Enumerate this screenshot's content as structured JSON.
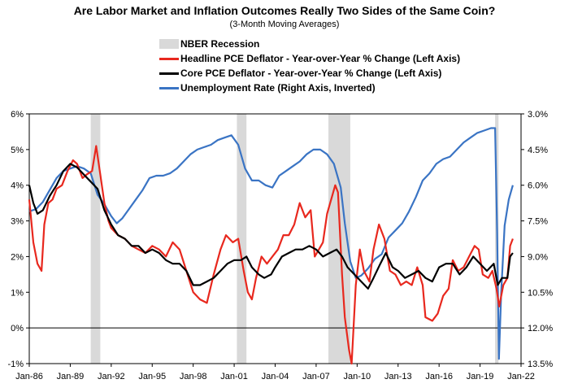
{
  "chart_data": {
    "type": "line",
    "title": "Are Labor Market and Inflation Outcomes Really Two Sides of the Same Coin?",
    "subtitle": "(3-Month Moving Averages)",
    "x_ticks": [
      "Jan-86",
      "Jan-89",
      "Jan-92",
      "Jan-95",
      "Jan-98",
      "Jan-01",
      "Jan-04",
      "Jan-07",
      "Jan-10",
      "Jan-13",
      "Jan-16",
      "Jan-19",
      "Jan-22"
    ],
    "x_range": [
      1986.0,
      2022.0
    ],
    "left_axis": {
      "ticks": [
        "-1%",
        "0%",
        "1%",
        "2%",
        "3%",
        "4%",
        "5%",
        "6%"
      ],
      "range": [
        -1,
        6
      ]
    },
    "right_axis": {
      "ticks": [
        "3.0%",
        "4.5%",
        "6.0%",
        "7.5%",
        "9.0%",
        "10.5%",
        "12.0%",
        "13.5%"
      ],
      "range": [
        3.0,
        13.5
      ],
      "inverted": true
    },
    "legend_placement": "top-center",
    "recessions": [
      {
        "name": "NBER Recession",
        "start": 1990.5,
        "end": 1991.2
      },
      {
        "name": "NBER Recession",
        "start": 2001.2,
        "end": 2001.9
      },
      {
        "name": "NBER Recession",
        "start": 2007.9,
        "end": 2009.5
      },
      {
        "name": "NBER Recession",
        "start": 2020.1,
        "end": 2020.35
      }
    ],
    "recession_label": "NBER Recession",
    "series": [
      {
        "name": "Headline PCE Deflator - Year-over-Year % Change (Left Axis)",
        "axis": "left",
        "color": "#e8281e",
        "points": [
          [
            1986.0,
            3.6
          ],
          [
            1986.3,
            2.4
          ],
          [
            1986.6,
            1.8
          ],
          [
            1986.9,
            1.6
          ],
          [
            1987.1,
            2.9
          ],
          [
            1987.4,
            3.5
          ],
          [
            1987.7,
            3.6
          ],
          [
            1988.0,
            3.9
          ],
          [
            1988.4,
            4.0
          ],
          [
            1988.8,
            4.4
          ],
          [
            1989.2,
            4.7
          ],
          [
            1989.5,
            4.6
          ],
          [
            1989.9,
            4.2
          ],
          [
            1990.2,
            4.3
          ],
          [
            1990.6,
            4.4
          ],
          [
            1990.9,
            5.1
          ],
          [
            1991.2,
            4.3
          ],
          [
            1991.5,
            3.5
          ],
          [
            1991.8,
            3.0
          ],
          [
            1992.0,
            2.8
          ],
          [
            1992.5,
            2.6
          ],
          [
            1993.0,
            2.5
          ],
          [
            1993.5,
            2.3
          ],
          [
            1994.0,
            2.2
          ],
          [
            1994.5,
            2.1
          ],
          [
            1995.0,
            2.3
          ],
          [
            1995.5,
            2.2
          ],
          [
            1996.0,
            2.0
          ],
          [
            1996.5,
            2.4
          ],
          [
            1997.0,
            2.2
          ],
          [
            1997.5,
            1.6
          ],
          [
            1998.0,
            1.0
          ],
          [
            1998.5,
            0.8
          ],
          [
            1999.0,
            0.7
          ],
          [
            1999.5,
            1.5
          ],
          [
            2000.0,
            2.2
          ],
          [
            2000.4,
            2.6
          ],
          [
            2000.9,
            2.4
          ],
          [
            2001.3,
            2.5
          ],
          [
            2001.7,
            1.6
          ],
          [
            2002.0,
            1.0
          ],
          [
            2002.3,
            0.8
          ],
          [
            2002.6,
            1.4
          ],
          [
            2003.0,
            2.0
          ],
          [
            2003.4,
            1.8
          ],
          [
            2003.8,
            2.0
          ],
          [
            2004.2,
            2.2
          ],
          [
            2004.6,
            2.6
          ],
          [
            2005.0,
            2.6
          ],
          [
            2005.4,
            2.9
          ],
          [
            2005.8,
            3.5
          ],
          [
            2006.2,
            3.1
          ],
          [
            2006.6,
            3.3
          ],
          [
            2006.9,
            2.0
          ],
          [
            2007.2,
            2.2
          ],
          [
            2007.5,
            2.4
          ],
          [
            2007.8,
            3.2
          ],
          [
            2008.1,
            3.6
          ],
          [
            2008.4,
            4.0
          ],
          [
            2008.6,
            3.8
          ],
          [
            2008.9,
            1.5
          ],
          [
            2009.1,
            0.3
          ],
          [
            2009.4,
            -0.6
          ],
          [
            2009.6,
            -1.0
          ],
          [
            2009.9,
            1.2
          ],
          [
            2010.2,
            2.2
          ],
          [
            2010.5,
            1.6
          ],
          [
            2010.9,
            1.3
          ],
          [
            2011.2,
            2.2
          ],
          [
            2011.6,
            2.9
          ],
          [
            2012.0,
            2.5
          ],
          [
            2012.4,
            1.6
          ],
          [
            2012.8,
            1.5
          ],
          [
            2013.2,
            1.2
          ],
          [
            2013.6,
            1.3
          ],
          [
            2014.0,
            1.2
          ],
          [
            2014.4,
            1.7
          ],
          [
            2014.8,
            1.2
          ],
          [
            2015.0,
            0.3
          ],
          [
            2015.5,
            0.2
          ],
          [
            2015.9,
            0.4
          ],
          [
            2016.3,
            0.9
          ],
          [
            2016.7,
            1.1
          ],
          [
            2017.0,
            1.9
          ],
          [
            2017.4,
            1.6
          ],
          [
            2017.8,
            1.7
          ],
          [
            2018.2,
            2.0
          ],
          [
            2018.6,
            2.3
          ],
          [
            2018.9,
            2.2
          ],
          [
            2019.2,
            1.5
          ],
          [
            2019.6,
            1.4
          ],
          [
            2019.9,
            1.6
          ],
          [
            2020.2,
            1.1
          ],
          [
            2020.4,
            0.6
          ],
          [
            2020.7,
            1.2
          ],
          [
            2021.0,
            1.4
          ],
          [
            2021.2,
            2.3
          ],
          [
            2021.4,
            2.5
          ]
        ]
      },
      {
        "name": "Core PCE Deflator - Year-over-Year % Change (Left Axis)",
        "axis": "left",
        "color": "#000000",
        "points": [
          [
            1986.0,
            4.0
          ],
          [
            1986.3,
            3.5
          ],
          [
            1986.6,
            3.2
          ],
          [
            1987.0,
            3.3
          ],
          [
            1987.5,
            3.7
          ],
          [
            1988.0,
            4.0
          ],
          [
            1988.5,
            4.4
          ],
          [
            1989.0,
            4.6
          ],
          [
            1989.5,
            4.5
          ],
          [
            1990.0,
            4.3
          ],
          [
            1990.5,
            4.1
          ],
          [
            1991.0,
            3.9
          ],
          [
            1991.5,
            3.3
          ],
          [
            1992.0,
            2.9
          ],
          [
            1992.5,
            2.6
          ],
          [
            1993.0,
            2.5
          ],
          [
            1993.5,
            2.3
          ],
          [
            1994.0,
            2.3
          ],
          [
            1994.5,
            2.1
          ],
          [
            1995.0,
            2.2
          ],
          [
            1995.5,
            2.1
          ],
          [
            1996.0,
            1.9
          ],
          [
            1996.5,
            1.8
          ],
          [
            1997.0,
            1.8
          ],
          [
            1997.5,
            1.6
          ],
          [
            1998.0,
            1.2
          ],
          [
            1998.5,
            1.2
          ],
          [
            1999.0,
            1.3
          ],
          [
            1999.5,
            1.4
          ],
          [
            2000.0,
            1.6
          ],
          [
            2000.5,
            1.8
          ],
          [
            2001.0,
            1.9
          ],
          [
            2001.5,
            1.9
          ],
          [
            2001.9,
            2.0
          ],
          [
            2002.3,
            1.7
          ],
          [
            2002.8,
            1.5
          ],
          [
            2003.2,
            1.4
          ],
          [
            2003.7,
            1.5
          ],
          [
            2004.0,
            1.7
          ],
          [
            2004.5,
            2.0
          ],
          [
            2005.0,
            2.1
          ],
          [
            2005.5,
            2.2
          ],
          [
            2006.0,
            2.2
          ],
          [
            2006.5,
            2.3
          ],
          [
            2007.0,
            2.2
          ],
          [
            2007.5,
            2.0
          ],
          [
            2008.0,
            2.1
          ],
          [
            2008.5,
            2.2
          ],
          [
            2008.9,
            2.0
          ],
          [
            2009.3,
            1.7
          ],
          [
            2009.8,
            1.5
          ],
          [
            2010.3,
            1.3
          ],
          [
            2010.8,
            1.1
          ],
          [
            2011.2,
            1.4
          ],
          [
            2011.7,
            1.8
          ],
          [
            2012.1,
            2.1
          ],
          [
            2012.6,
            1.7
          ],
          [
            2013.0,
            1.6
          ],
          [
            2013.5,
            1.4
          ],
          [
            2014.0,
            1.5
          ],
          [
            2014.5,
            1.6
          ],
          [
            2015.0,
            1.4
          ],
          [
            2015.5,
            1.3
          ],
          [
            2016.0,
            1.7
          ],
          [
            2016.5,
            1.8
          ],
          [
            2017.0,
            1.8
          ],
          [
            2017.5,
            1.5
          ],
          [
            2018.0,
            1.7
          ],
          [
            2018.5,
            2.0
          ],
          [
            2019.0,
            1.8
          ],
          [
            2019.5,
            1.6
          ],
          [
            2020.0,
            1.8
          ],
          [
            2020.3,
            1.2
          ],
          [
            2020.6,
            1.4
          ],
          [
            2021.0,
            1.4
          ],
          [
            2021.2,
            2.0
          ],
          [
            2021.4,
            2.1
          ]
        ]
      },
      {
        "name": "Unemployment Rate (Right Axis, Inverted)",
        "axis": "right",
        "color": "#3a74c4",
        "points": [
          [
            1986.0,
            7.1
          ],
          [
            1986.5,
            7.0
          ],
          [
            1987.0,
            6.7
          ],
          [
            1987.5,
            6.2
          ],
          [
            1988.0,
            5.7
          ],
          [
            1988.5,
            5.4
          ],
          [
            1989.0,
            5.3
          ],
          [
            1989.5,
            5.2
          ],
          [
            1990.0,
            5.3
          ],
          [
            1990.5,
            5.5
          ],
          [
            1991.0,
            6.4
          ],
          [
            1991.5,
            6.8
          ],
          [
            1992.0,
            7.3
          ],
          [
            1992.4,
            7.6
          ],
          [
            1992.8,
            7.4
          ],
          [
            1993.3,
            7.0
          ],
          [
            1993.8,
            6.6
          ],
          [
            1994.3,
            6.2
          ],
          [
            1994.8,
            5.7
          ],
          [
            1995.3,
            5.6
          ],
          [
            1995.8,
            5.6
          ],
          [
            1996.3,
            5.5
          ],
          [
            1996.8,
            5.3
          ],
          [
            1997.3,
            5.0
          ],
          [
            1997.8,
            4.7
          ],
          [
            1998.3,
            4.5
          ],
          [
            1998.8,
            4.4
          ],
          [
            1999.3,
            4.3
          ],
          [
            1999.8,
            4.1
          ],
          [
            2000.3,
            4.0
          ],
          [
            2000.8,
            3.9
          ],
          [
            2001.3,
            4.3
          ],
          [
            2001.8,
            5.3
          ],
          [
            2002.3,
            5.8
          ],
          [
            2002.8,
            5.8
          ],
          [
            2003.3,
            6.0
          ],
          [
            2003.8,
            6.1
          ],
          [
            2004.3,
            5.6
          ],
          [
            2004.8,
            5.4
          ],
          [
            2005.3,
            5.2
          ],
          [
            2005.8,
            5.0
          ],
          [
            2006.3,
            4.7
          ],
          [
            2006.8,
            4.5
          ],
          [
            2007.3,
            4.5
          ],
          [
            2007.8,
            4.7
          ],
          [
            2008.3,
            5.1
          ],
          [
            2008.8,
            6.1
          ],
          [
            2009.1,
            7.6
          ],
          [
            2009.5,
            9.2
          ],
          [
            2009.9,
            9.9
          ],
          [
            2010.3,
            9.8
          ],
          [
            2010.8,
            9.5
          ],
          [
            2011.3,
            9.1
          ],
          [
            2011.8,
            8.9
          ],
          [
            2012.3,
            8.2
          ],
          [
            2012.8,
            7.9
          ],
          [
            2013.3,
            7.6
          ],
          [
            2013.8,
            7.1
          ],
          [
            2014.3,
            6.5
          ],
          [
            2014.8,
            5.8
          ],
          [
            2015.3,
            5.5
          ],
          [
            2015.8,
            5.1
          ],
          [
            2016.3,
            4.9
          ],
          [
            2016.8,
            4.8
          ],
          [
            2017.3,
            4.5
          ],
          [
            2017.8,
            4.2
          ],
          [
            2018.3,
            4.0
          ],
          [
            2018.8,
            3.8
          ],
          [
            2019.3,
            3.7
          ],
          [
            2019.8,
            3.6
          ],
          [
            2020.1,
            3.6
          ],
          [
            2020.25,
            8.0
          ],
          [
            2020.38,
            13.3
          ],
          [
            2020.55,
            10.5
          ],
          [
            2020.8,
            7.7
          ],
          [
            2021.1,
            6.6
          ],
          [
            2021.4,
            6.0
          ]
        ]
      }
    ]
  }
}
